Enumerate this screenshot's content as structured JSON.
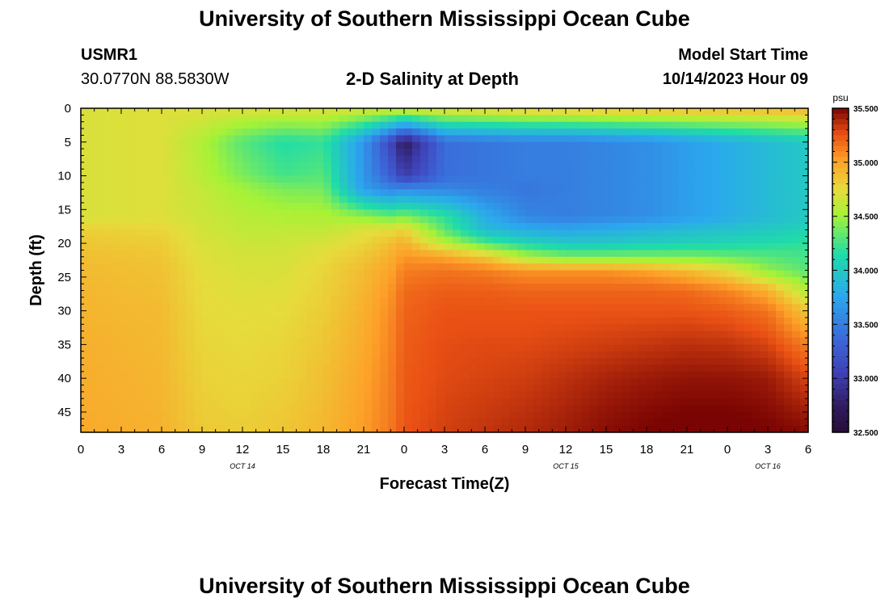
{
  "header": {
    "title": "University of Southern Mississippi Ocean Cube",
    "station_id": "USMR1",
    "coordinates": "30.0770N  88.5830W",
    "subtitle": "2-D Salinity at Depth",
    "model_start_label": "Model Start Time",
    "model_start_value": "10/14/2023 Hour 09"
  },
  "footer": {
    "title": "University of Southern Mississippi Ocean Cube"
  },
  "chart_data": {
    "type": "heatmap",
    "title": "2-D Salinity at Depth",
    "xlabel": "Forecast Time(Z)",
    "ylabel": "Depth (ft)",
    "x_range_hours": [
      0,
      54
    ],
    "x_ticks": [
      "0",
      "3",
      "6",
      "9",
      "12",
      "15",
      "18",
      "21",
      "0",
      "3",
      "6",
      "9",
      "12",
      "15",
      "18",
      "21",
      "0",
      "3",
      "6"
    ],
    "date_labels": [
      {
        "text": "OCT 14",
        "hour": 12
      },
      {
        "text": "OCT 15",
        "hour": 36
      },
      {
        "text": "OCT 16",
        "hour": 51
      }
    ],
    "y_range_ft": [
      0,
      48
    ],
    "y_ticks": [
      0,
      5,
      10,
      15,
      20,
      25,
      30,
      35,
      40,
      45
    ],
    "colorbar": {
      "unit": "psu",
      "min": 32.5,
      "max": 35.5,
      "ticks": [
        "35.500",
        "35.000",
        "34.500",
        "34.000",
        "33.500",
        "33.000",
        "32.500"
      ]
    },
    "grid_hours": [
      0,
      6,
      9,
      12,
      15,
      18,
      21,
      23,
      24,
      27,
      30,
      33,
      36,
      39,
      42,
      45,
      48,
      51,
      54
    ],
    "grid_depths_ft": [
      0,
      5,
      10,
      12,
      16,
      18,
      20,
      22,
      24,
      27,
      30,
      35,
      40,
      45,
      48
    ],
    "salinity_psu": [
      [
        34.7,
        34.72,
        34.72,
        34.72,
        34.72,
        34.72,
        34.72,
        34.72,
        34.75,
        34.78,
        34.82,
        34.86,
        34.88,
        34.9,
        34.92,
        34.93,
        34.93,
        34.94,
        34.96
      ],
      [
        34.7,
        34.72,
        34.55,
        34.3,
        34.15,
        34.2,
        33.65,
        33.1,
        32.7,
        33.4,
        33.45,
        33.5,
        33.5,
        33.55,
        33.6,
        33.7,
        33.8,
        33.9,
        34.0
      ],
      [
        34.7,
        34.72,
        34.58,
        34.4,
        34.25,
        34.3,
        33.65,
        33.3,
        33.0,
        33.4,
        33.45,
        33.5,
        33.5,
        33.55,
        33.6,
        33.7,
        33.8,
        33.9,
        34.0
      ],
      [
        34.7,
        34.72,
        34.62,
        34.5,
        34.4,
        34.38,
        33.7,
        33.55,
        33.6,
        33.55,
        33.5,
        33.45,
        33.5,
        33.55,
        33.6,
        33.7,
        33.8,
        33.9,
        34.0
      ],
      [
        34.7,
        34.72,
        34.65,
        34.58,
        34.55,
        34.55,
        34.45,
        34.35,
        34.4,
        34.2,
        33.8,
        33.55,
        33.5,
        33.55,
        33.6,
        33.7,
        33.8,
        33.9,
        34.0
      ],
      [
        34.8,
        34.78,
        34.68,
        34.6,
        34.6,
        34.6,
        34.72,
        34.75,
        34.8,
        34.3,
        33.9,
        33.8,
        33.75,
        33.8,
        33.85,
        33.9,
        33.95,
        34.0,
        34.08
      ],
      [
        34.85,
        34.82,
        34.7,
        34.65,
        34.65,
        34.7,
        34.78,
        34.88,
        34.95,
        34.6,
        34.3,
        34.1,
        34.0,
        34.0,
        34.05,
        34.08,
        34.1,
        34.15,
        34.2
      ],
      [
        34.88,
        34.85,
        34.72,
        34.68,
        34.68,
        34.75,
        34.85,
        34.95,
        35.05,
        35.0,
        34.85,
        34.55,
        34.4,
        34.4,
        34.4,
        34.4,
        34.35,
        34.3,
        34.25
      ],
      [
        34.9,
        34.87,
        34.74,
        34.7,
        34.7,
        34.78,
        34.9,
        35.0,
        35.12,
        35.15,
        35.12,
        35.05,
        35.05,
        35.05,
        35.0,
        34.9,
        34.75,
        34.45,
        34.3
      ],
      [
        34.92,
        34.88,
        34.75,
        34.72,
        34.73,
        34.8,
        34.92,
        35.05,
        35.18,
        35.22,
        35.22,
        35.2,
        35.2,
        35.2,
        35.2,
        35.18,
        35.1,
        34.95,
        34.55
      ],
      [
        34.93,
        34.9,
        34.76,
        34.74,
        34.75,
        34.82,
        34.95,
        35.08,
        35.2,
        35.25,
        35.25,
        35.25,
        35.25,
        35.25,
        35.25,
        35.25,
        35.22,
        35.15,
        34.85
      ],
      [
        34.95,
        34.91,
        34.78,
        34.76,
        34.78,
        34.85,
        34.97,
        35.1,
        35.22,
        35.27,
        35.28,
        35.28,
        35.3,
        35.32,
        35.34,
        35.36,
        35.35,
        35.3,
        35.12
      ],
      [
        34.96,
        34.92,
        34.8,
        34.78,
        34.8,
        34.88,
        35.0,
        35.12,
        35.23,
        35.28,
        35.3,
        35.32,
        35.36,
        35.4,
        35.43,
        35.45,
        35.45,
        35.43,
        35.3
      ],
      [
        34.97,
        34.93,
        34.82,
        34.8,
        34.83,
        34.9,
        35.02,
        35.13,
        35.24,
        35.3,
        35.33,
        35.36,
        35.4,
        35.45,
        35.48,
        35.5,
        35.5,
        35.48,
        35.42
      ],
      [
        34.98,
        34.94,
        34.84,
        34.82,
        34.85,
        34.92,
        35.03,
        35.14,
        35.25,
        35.31,
        35.35,
        35.38,
        35.42,
        35.47,
        35.5,
        35.52,
        35.52,
        35.5,
        35.48
      ]
    ]
  }
}
